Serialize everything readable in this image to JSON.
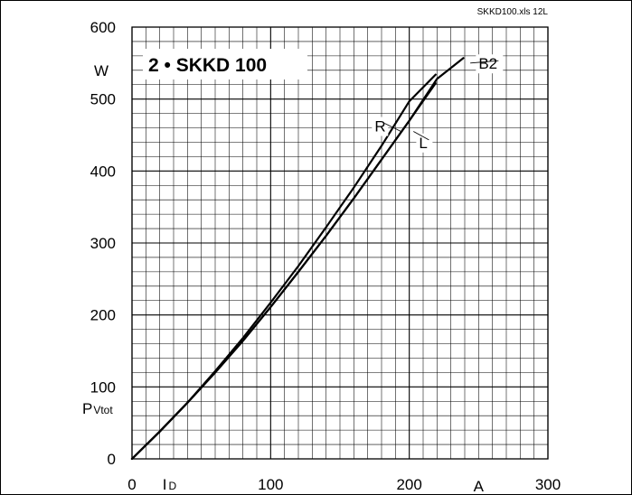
{
  "chart_data": {
    "type": "line",
    "title": "2 • SKKD 100",
    "source_note": "SKKD100.xls 12L",
    "x_axis": {
      "min": 0,
      "max": 300,
      "ticks": [
        0,
        100,
        200,
        300
      ],
      "tick_labels": [
        "0",
        "100",
        "200",
        "300"
      ],
      "symbol": "I",
      "symbol_sub": "D",
      "unit": "A",
      "minor_step": 10
    },
    "y_axis": {
      "min": 0,
      "max": 600,
      "ticks": [
        0,
        100,
        200,
        300,
        400,
        500,
        600
      ],
      "tick_labels": [
        "0",
        "100",
        "200",
        "300",
        "400",
        "500",
        "600"
      ],
      "symbol": "P",
      "symbol_sub": "Vtot",
      "unit": "W",
      "minor_step": 20
    },
    "grid": true,
    "series": [
      {
        "name": "R",
        "points": [
          [
            0,
            0
          ],
          [
            20,
            38
          ],
          [
            40,
            78
          ],
          [
            60,
            122
          ],
          [
            80,
            168
          ],
          [
            100,
            217
          ],
          [
            120,
            268
          ],
          [
            140,
            322
          ],
          [
            160,
            377
          ],
          [
            180,
            435
          ],
          [
            200,
            497
          ],
          [
            219,
            534
          ]
        ]
      },
      {
        "name": "L",
        "points": [
          [
            0,
            0
          ],
          [
            20,
            38
          ],
          [
            40,
            78
          ],
          [
            60,
            120
          ],
          [
            80,
            164
          ],
          [
            100,
            211
          ],
          [
            120,
            260
          ],
          [
            140,
            310
          ],
          [
            160,
            362
          ],
          [
            180,
            416
          ],
          [
            200,
            470
          ],
          [
            219,
            522
          ]
        ]
      },
      {
        "name": "B2",
        "points": [
          [
            0,
            0
          ],
          [
            20,
            38
          ],
          [
            40,
            78
          ],
          [
            60,
            120
          ],
          [
            80,
            164
          ],
          [
            100,
            211
          ],
          [
            120,
            260
          ],
          [
            140,
            310
          ],
          [
            160,
            362
          ],
          [
            180,
            416
          ],
          [
            200,
            470
          ],
          [
            220,
            528
          ],
          [
            239,
            557
          ]
        ]
      }
    ],
    "series_labels": [
      {
        "text": "R",
        "at": [
          175,
          455
        ],
        "line_to": [
          194,
          455
        ]
      },
      {
        "text": "L",
        "at": [
          207,
          432
        ],
        "line_to": [
          203,
          455
        ]
      },
      {
        "text": "B2",
        "at": [
          250,
          542
        ],
        "line_to": [
          244,
          550
        ]
      }
    ]
  }
}
